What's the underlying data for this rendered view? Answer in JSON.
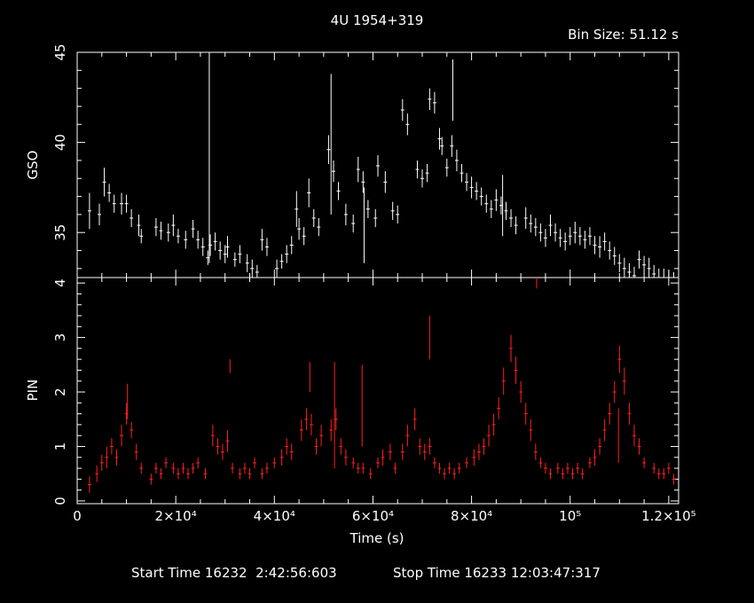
{
  "chart_data": [
    {
      "type": "scatter",
      "title": "4U 1954+319",
      "annotation": "Bin Size: 51.12 s",
      "ylabel": "GSO",
      "xlim": [
        0,
        122000
      ],
      "ylim": [
        32.5,
        45
      ],
      "yticks": [
        "35",
        "40",
        "45"
      ],
      "style": "vertical error bars, white",
      "color": "#ffffff",
      "series": [
        {
          "x": [
            2500,
            4500,
            5500,
            6500,
            7500,
            9000,
            10000,
            11000,
            12500,
            13000,
            16000,
            17000,
            18500,
            19500,
            20500,
            22000,
            23500,
            24500,
            25500,
            26500,
            27000,
            28000,
            29000,
            30000,
            30500,
            32000,
            33000,
            34500,
            35500,
            36500,
            37500,
            38500,
            40500,
            41500,
            42500,
            43500,
            44500,
            45000,
            46000,
            47000,
            48000,
            49000,
            51000,
            52000,
            53000,
            54500,
            56000,
            57000,
            58000,
            59000,
            60500,
            61000,
            62500,
            64000,
            65000,
            66000,
            67000,
            69000,
            70000,
            71000,
            71500,
            72500,
            73500,
            74000,
            75000,
            76000,
            77000,
            78000,
            79000,
            80000,
            81000,
            82000,
            83000,
            84000,
            85000,
            86000,
            87000,
            88000,
            89000,
            91000,
            92000,
            93000,
            94000,
            95000,
            96000,
            97000,
            98000,
            99000,
            100000,
            101000,
            102000,
            103000,
            104000,
            105000,
            106000,
            107000,
            108000,
            109000,
            110000,
            111000,
            112000,
            113000,
            114000,
            115000,
            116000,
            117000,
            118000,
            119000,
            120000,
            121000
          ],
          "y": [
            36.2,
            36.0,
            37.8,
            37.2,
            36.6,
            36.6,
            36.6,
            35.8,
            35.4,
            34.8,
            35.3,
            35.1,
            35.0,
            35.4,
            34.8,
            34.6,
            35.2,
            34.6,
            34.2,
            33.6,
            34.3,
            34.5,
            34.0,
            33.8,
            34.2,
            33.5,
            33.8,
            33.3,
            33.0,
            32.8,
            34.6,
            34.2,
            33.0,
            33.4,
            33.8,
            34.3,
            36.3,
            35.2,
            34.8,
            37.2,
            35.8,
            35.3,
            39.6,
            38.4,
            37.3,
            36.0,
            35.5,
            38.5,
            37.8,
            36.3,
            35.8,
            38.7,
            37.8,
            36.2,
            36.0,
            41.8,
            41.0,
            38.5,
            38.0,
            38.3,
            42.4,
            42.2,
            40.2,
            39.8,
            38.6,
            39.8,
            39.0,
            38.3,
            37.8,
            37.5,
            37.3,
            37.0,
            36.6,
            36.3,
            36.8,
            36.5,
            36.2,
            35.8,
            35.4,
            35.8,
            35.5,
            35.3,
            35.0,
            34.7,
            35.4,
            35.0,
            34.7,
            34.5,
            34.8,
            35.0,
            34.8,
            34.6,
            34.8,
            34.3,
            34.2,
            34.5,
            34.0,
            33.7,
            33.3,
            33.0,
            32.8,
            32.6,
            33.5,
            33.2,
            33.0,
            32.7,
            32.5,
            32.5,
            32.4,
            32.3
          ],
          "err": [
            1.0,
            0.6,
            0.8,
            0.5,
            0.5,
            0.6,
            0.5,
            0.5,
            0.6,
            0.4,
            0.5,
            0.5,
            0.5,
            0.6,
            0.4,
            0.5,
            0.5,
            0.5,
            0.5,
            0.4,
            0.6,
            0.5,
            0.5,
            0.5,
            0.6,
            0.4,
            0.5,
            0.5,
            0.5,
            0.4,
            0.6,
            0.5,
            0.5,
            0.4,
            0.5,
            0.5,
            1.0,
            0.6,
            0.5,
            0.8,
            0.5,
            0.5,
            0.8,
            0.6,
            0.5,
            0.6,
            0.5,
            0.7,
            0.6,
            0.5,
            0.5,
            0.6,
            0.6,
            0.5,
            0.5,
            0.6,
            0.6,
            0.5,
            0.5,
            0.5,
            0.6,
            0.6,
            0.6,
            0.5,
            0.5,
            0.6,
            0.6,
            0.5,
            0.5,
            0.6,
            0.5,
            0.5,
            0.5,
            0.5,
            0.6,
            0.5,
            0.5,
            0.5,
            0.5,
            0.6,
            0.5,
            0.5,
            0.5,
            0.5,
            0.6,
            0.5,
            0.5,
            0.5,
            0.5,
            0.6,
            0.5,
            0.5,
            0.5,
            0.5,
            0.6,
            0.5,
            0.5,
            0.5,
            0.5,
            0.6,
            0.5,
            0.5,
            0.5,
            0.5,
            0.6,
            0.5,
            0.5,
            0.5,
            0.5,
            0.5
          ]
        }
      ],
      "spikes": [
        {
          "x": 26800,
          "ylo": 33.3,
          "yhi": 45.0
        },
        {
          "x": 51500,
          "ylo": 36.0,
          "yhi": 43.8
        },
        {
          "x": 58200,
          "ylo": 33.3,
          "yhi": 37.5
        },
        {
          "x": 76200,
          "ylo": 41.2,
          "yhi": 44.6
        },
        {
          "x": 86300,
          "ylo": 34.8,
          "yhi": 38.2
        }
      ]
    },
    {
      "type": "scatter",
      "ylabel": "PIN",
      "xlabel": "Time (s)",
      "xlim": [
        0,
        122000
      ],
      "ylim": [
        -0.05,
        4.1
      ],
      "xticks": [
        "0",
        "2×10⁴",
        "4×10⁴",
        "6×10⁴",
        "8×10⁴",
        "10⁵",
        "1.2×10⁵"
      ],
      "xtick_values": [
        0,
        20000,
        40000,
        60000,
        80000,
        100000,
        120000
      ],
      "yticks": [
        "0",
        "1",
        "2",
        "3",
        "4"
      ],
      "style": "vertical error bars, red",
      "color": "#ff2020",
      "series": [
        {
          "x": [
            2500,
            4000,
            5000,
            6000,
            7000,
            8000,
            9000,
            10000,
            11000,
            12000,
            13000,
            15000,
            16000,
            17000,
            18000,
            19500,
            20500,
            21500,
            22500,
            23500,
            24500,
            26000,
            27500,
            28500,
            29500,
            30500,
            31500,
            33000,
            34000,
            35000,
            36000,
            37500,
            38500,
            40000,
            41500,
            42500,
            43500,
            45500,
            46500,
            47500,
            48500,
            49500,
            51500,
            52500,
            53500,
            54500,
            56000,
            57000,
            58000,
            59500,
            61000,
            62000,
            63500,
            64500,
            66000,
            67000,
            68500,
            69500,
            70500,
            71500,
            72500,
            73500,
            74500,
            75500,
            76500,
            77500,
            79000,
            80500,
            81500,
            82500,
            83500,
            84500,
            85500,
            86500,
            88000,
            89000,
            90000,
            91000,
            92000,
            93000,
            94000,
            95000,
            96000,
            97500,
            98500,
            99500,
            100500,
            101500,
            102500,
            104000,
            105000,
            106000,
            107000,
            108000,
            109000,
            110000,
            111000,
            112000,
            113000,
            114000,
            115000,
            117000,
            118000,
            119000,
            120000,
            121000
          ],
          "y": [
            0.3,
            0.5,
            0.7,
            0.8,
            1.0,
            0.8,
            1.2,
            1.6,
            1.3,
            0.9,
            0.6,
            0.4,
            0.6,
            0.5,
            0.7,
            0.6,
            0.5,
            0.6,
            0.5,
            0.6,
            0.7,
            0.5,
            1.2,
            1.0,
            0.9,
            1.1,
            0.6,
            0.5,
            0.6,
            0.5,
            0.7,
            0.5,
            0.6,
            0.7,
            0.8,
            1.0,
            0.9,
            1.3,
            1.5,
            1.4,
            1.0,
            1.2,
            1.3,
            1.5,
            1.0,
            0.8,
            0.7,
            0.6,
            0.6,
            0.5,
            0.7,
            0.8,
            0.9,
            0.6,
            0.9,
            1.2,
            1.5,
            1.0,
            0.9,
            1.0,
            0.7,
            0.6,
            0.5,
            0.6,
            0.5,
            0.6,
            0.7,
            0.8,
            0.9,
            1.0,
            1.2,
            1.4,
            1.7,
            2.2,
            2.8,
            2.4,
            2.0,
            1.6,
            1.3,
            0.9,
            0.7,
            0.6,
            0.5,
            0.6,
            0.5,
            0.6,
            0.5,
            0.6,
            0.5,
            0.7,
            0.8,
            1.0,
            1.3,
            1.6,
            2.0,
            2.6,
            2.2,
            1.6,
            1.2,
            1.0,
            0.7,
            0.6,
            0.5,
            0.5,
            0.6,
            0.4
          ],
          "err": [
            0.15,
            0.15,
            0.15,
            0.2,
            0.15,
            0.15,
            0.2,
            0.2,
            0.15,
            0.15,
            0.1,
            0.1,
            0.1,
            0.1,
            0.1,
            0.1,
            0.1,
            0.1,
            0.1,
            0.1,
            0.1,
            0.1,
            0.2,
            0.15,
            0.15,
            0.2,
            0.1,
            0.1,
            0.1,
            0.1,
            0.1,
            0.1,
            0.1,
            0.1,
            0.15,
            0.15,
            0.15,
            0.2,
            0.2,
            0.2,
            0.15,
            0.2,
            0.2,
            0.2,
            0.15,
            0.15,
            0.1,
            0.1,
            0.1,
            0.1,
            0.1,
            0.15,
            0.15,
            0.1,
            0.15,
            0.2,
            0.2,
            0.15,
            0.15,
            0.15,
            0.1,
            0.1,
            0.1,
            0.1,
            0.1,
            0.1,
            0.1,
            0.15,
            0.15,
            0.15,
            0.2,
            0.2,
            0.2,
            0.25,
            0.25,
            0.25,
            0.2,
            0.2,
            0.2,
            0.15,
            0.1,
            0.1,
            0.1,
            0.1,
            0.1,
            0.1,
            0.1,
            0.1,
            0.1,
            0.1,
            0.15,
            0.15,
            0.2,
            0.2,
            0.2,
            0.25,
            0.25,
            0.2,
            0.2,
            0.15,
            0.1,
            0.1,
            0.1,
            0.1,
            0.1,
            0.1
          ]
        }
      ],
      "spikes": [
        {
          "x": 10200,
          "ylo": 1.5,
          "yhi": 2.15
        },
        {
          "x": 31000,
          "ylo": 2.35,
          "yhi": 2.6
        },
        {
          "x": 47200,
          "ylo": 2.0,
          "yhi": 2.55
        },
        {
          "x": 52200,
          "ylo": 0.6,
          "yhi": 2.55
        },
        {
          "x": 57800,
          "ylo": 1.0,
          "yhi": 2.5
        },
        {
          "x": 71500,
          "ylo": 2.6,
          "yhi": 3.4
        },
        {
          "x": 93200,
          "ylo": 3.9,
          "yhi": 4.1
        },
        {
          "x": 109800,
          "ylo": 0.7,
          "yhi": 1.7
        }
      ]
    }
  ],
  "footer": {
    "start_label": "Start Time 16232  2:42:56:603",
    "stop_label": "Stop Time 16233 12:03:47:317"
  }
}
